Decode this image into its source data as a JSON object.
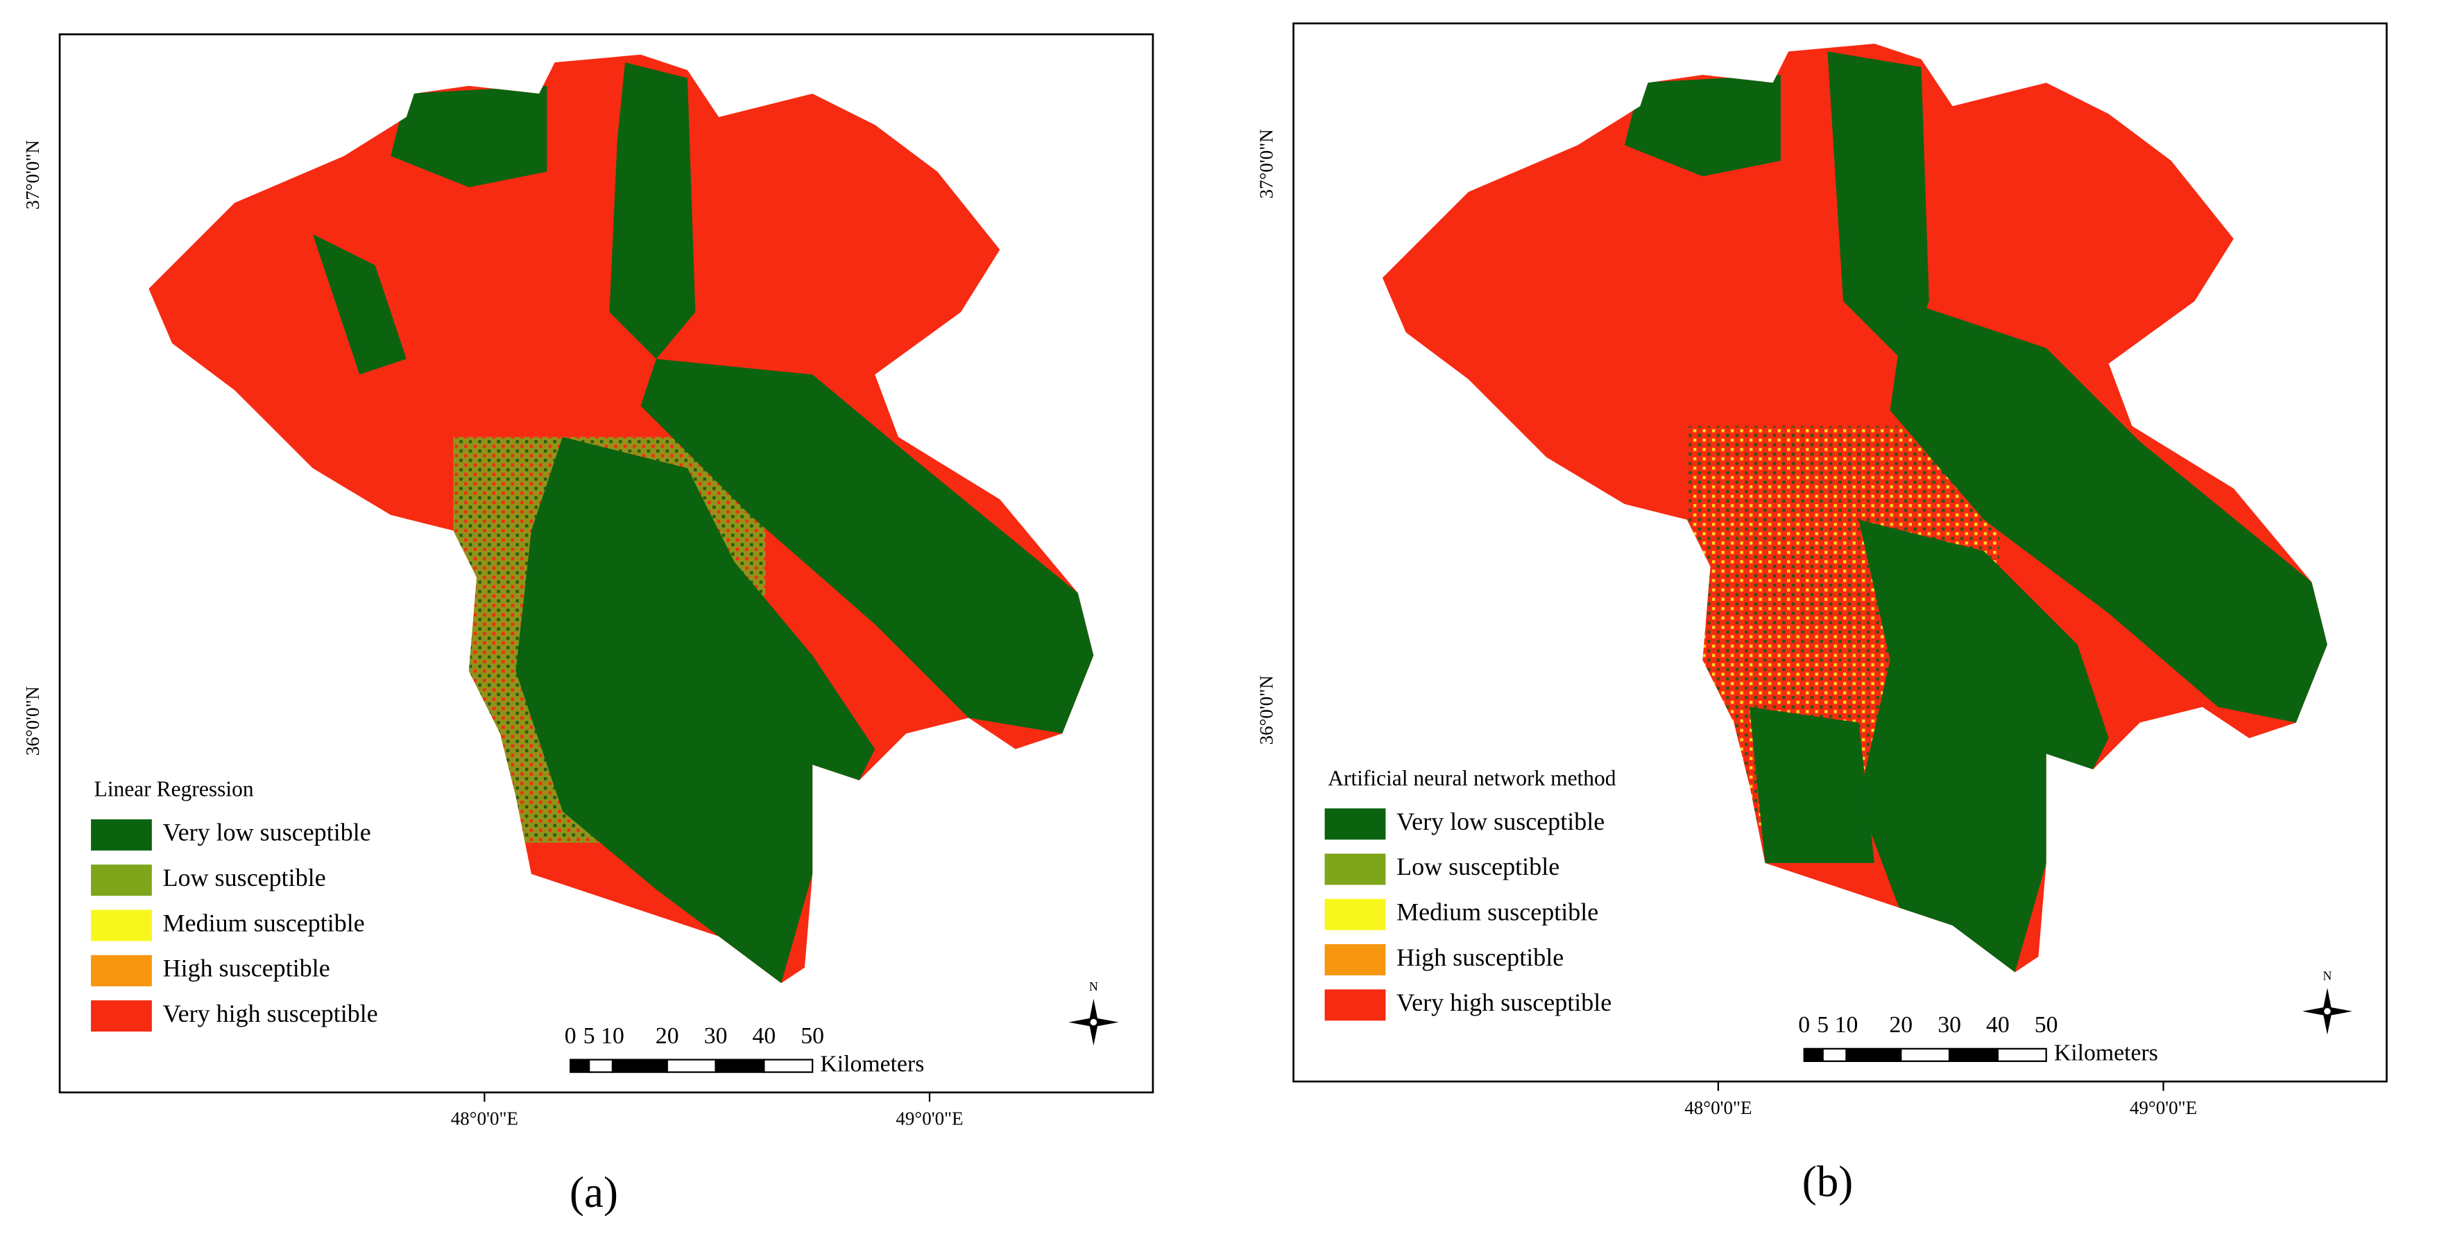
{
  "panels": [
    {
      "caption": "(a)",
      "legend_title": "Linear Regression",
      "legend": [
        {
          "label": "Very low susceptible",
          "color": "#0b6310"
        },
        {
          "label": "Low susceptible",
          "color": "#7fa51a"
        },
        {
          "label": "Medium susceptible",
          "color": "#f7f71e"
        },
        {
          "label": "High susceptible",
          "color": "#f7960f"
        },
        {
          "label": "Very high susceptible",
          "color": "#f72a12"
        }
      ],
      "lat_labels": [
        "37°0'0\"N",
        "36°0'0\"N"
      ],
      "lon_labels": [
        "48°0'0\"E",
        "49°0'0\"E"
      ],
      "scale_labels": [
        "0",
        "5",
        "10",
        "20",
        "30",
        "40",
        "50"
      ],
      "scale_unit": "Kilometers",
      "north": "N"
    },
    {
      "caption": "(b)",
      "legend_title": "Artificial neural network method",
      "legend": [
        {
          "label": "Very low susceptible",
          "color": "#0b6310"
        },
        {
          "label": "Low susceptible",
          "color": "#7fa51a"
        },
        {
          "label": "Medium susceptible",
          "color": "#f7f71e"
        },
        {
          "label": "High susceptible",
          "color": "#f7960f"
        },
        {
          "label": "Very high susceptible",
          "color": "#f72a12"
        }
      ],
      "lat_labels": [
        "37°0'0\"N",
        "36°0'0\"N"
      ],
      "lon_labels": [
        "48°0'0\"E",
        "49°0'0\"E"
      ],
      "scale_labels": [
        "0",
        "5",
        "10",
        "20",
        "30",
        "40",
        "50"
      ],
      "scale_unit": "Kilometers",
      "north": "N"
    }
  ]
}
